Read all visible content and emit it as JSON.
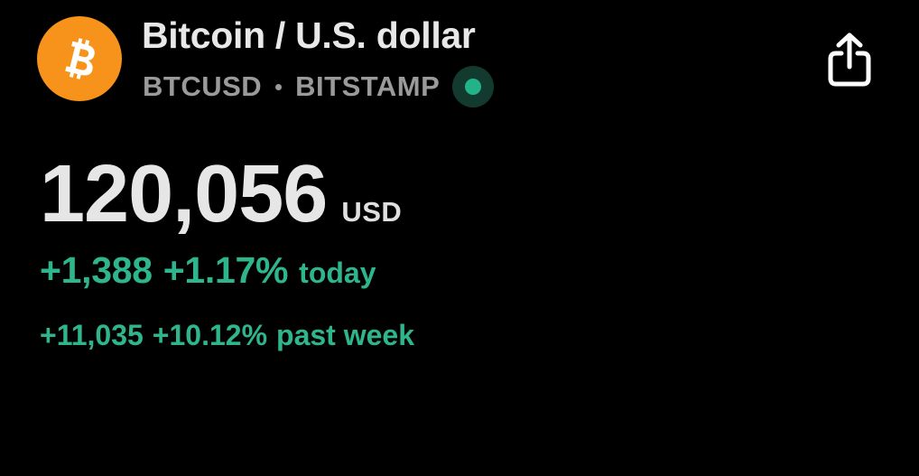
{
  "header": {
    "logo_icon": "bitcoin-icon",
    "title": "Bitcoin / U.S. dollar",
    "symbol": "BTCUSD",
    "exchange": "BITSTAMP",
    "market_status_color": "#22b38a",
    "share_icon": "share-icon"
  },
  "quote": {
    "price": "120,056",
    "currency": "USD"
  },
  "change_today": {
    "absolute": "+1,388",
    "percent": "+1.17%",
    "period": "today"
  },
  "change_week": {
    "absolute": "+11,035",
    "percent": "+10.12%",
    "period": "past week"
  },
  "colors": {
    "background": "#000000",
    "bitcoin_orange": "#f7931a",
    "positive_green": "#2fb58c",
    "muted_text": "#9a9a9a"
  }
}
